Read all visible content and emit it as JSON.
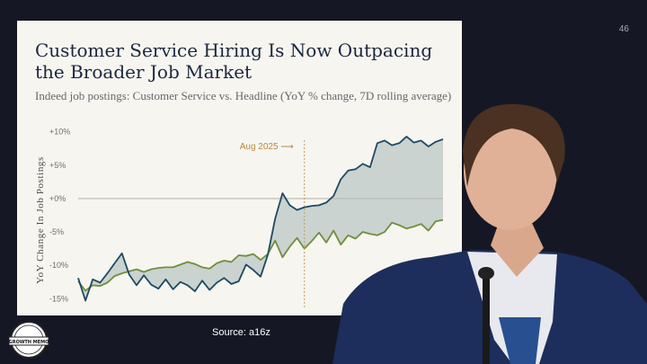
{
  "slide": {
    "number": "46"
  },
  "source": {
    "text": "Source: a16z"
  },
  "badge": {
    "text": "GROWTH MEMO"
  },
  "chart_data": {
    "type": "line",
    "title": "Customer Service Hiring Is Now Outpacing the Broader Job Market",
    "subtitle": "Indeed job postings: Customer Service vs. Headline (YoY % change, 7D rolling average)",
    "ylabel": "YoY Change In Job Postings",
    "xlabel": "",
    "ylim": [
      -15.5,
      10.5
    ],
    "yticks": [
      10,
      5,
      0,
      -5,
      -10,
      -15
    ],
    "ytick_labels": [
      "+10%",
      "+5%",
      "+0%",
      "-5%",
      "-10%",
      "-15%"
    ],
    "x": [
      0,
      0.02,
      0.04,
      0.06,
      0.08,
      0.1,
      0.12,
      0.14,
      0.16,
      0.18,
      0.2,
      0.22,
      0.24,
      0.26,
      0.28,
      0.3,
      0.32,
      0.34,
      0.36,
      0.38,
      0.4,
      0.42,
      0.44,
      0.46,
      0.48,
      0.5,
      0.52,
      0.54,
      0.56,
      0.58,
      0.6,
      0.62,
      0.64,
      0.66,
      0.68,
      0.7,
      0.72,
      0.74,
      0.76,
      0.78,
      0.8,
      0.82,
      0.84,
      0.86,
      0.88,
      0.9,
      0.92,
      0.94,
      0.96,
      0.98,
      1.0
    ],
    "series": [
      {
        "name": "Customer Service",
        "color": "#1d4a64",
        "values": [
          -11.9,
          -15.3,
          -12.1,
          -12.6,
          -11.2,
          -9.7,
          -8.2,
          -11.4,
          -13.0,
          -11.5,
          -12.9,
          -13.5,
          -12.1,
          -13.6,
          -12.5,
          -13.0,
          -13.9,
          -12.3,
          -13.7,
          -12.6,
          -11.9,
          -12.8,
          -12.4,
          -9.9,
          -10.7,
          -11.7,
          -8.4,
          -3.0,
          0.8,
          -1.0,
          -1.7,
          -1.3,
          -1.1,
          -1.0,
          -0.6,
          0.4,
          2.9,
          4.2,
          4.4,
          5.2,
          4.7,
          8.3,
          8.7,
          8.0,
          8.3,
          9.3,
          8.4,
          8.7,
          7.8,
          8.5,
          8.9
        ]
      },
      {
        "name": "Headline",
        "color": "#6f8f3c",
        "values": [
          -12.4,
          -13.8,
          -13.0,
          -13.1,
          -12.6,
          -11.6,
          -11.2,
          -10.9,
          -10.6,
          -11.0,
          -10.6,
          -10.4,
          -10.3,
          -10.3,
          -9.9,
          -9.5,
          -9.8,
          -10.3,
          -10.5,
          -9.7,
          -9.3,
          -9.5,
          -8.5,
          -8.6,
          -8.3,
          -9.2,
          -8.3,
          -6.3,
          -8.8,
          -7.2,
          -5.9,
          -7.5,
          -6.4,
          -5.1,
          -6.6,
          -4.8,
          -6.9,
          -5.5,
          -6.0,
          -5.0,
          -5.3,
          -5.5,
          -5.0,
          -3.6,
          -4.0,
          -4.5,
          -4.2,
          -3.8,
          -4.8,
          -3.4,
          -3.2
        ]
      }
    ],
    "annotation": {
      "label": "Aug 2025",
      "x": 0.62
    },
    "legend": "none",
    "grid": false
  }
}
